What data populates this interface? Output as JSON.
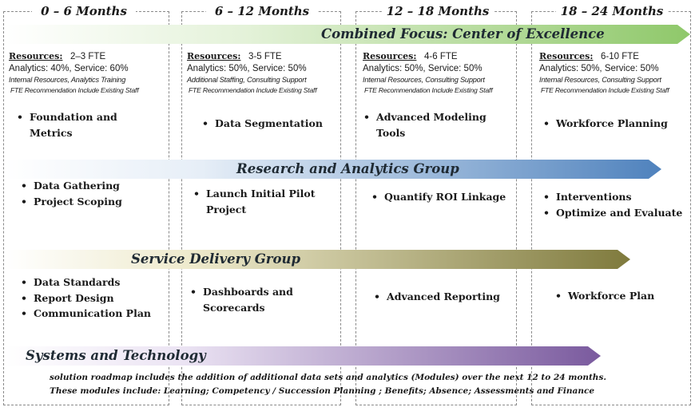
{
  "columns": [
    {
      "header": "0 – 6 Months",
      "resources_label": "Resources:",
      "fte": "2–3 FTE",
      "split": "Analytics: 40%,  Service: 60%",
      "note": "Internal Resources, Analytics Training",
      "note2": "FTE Recommendation Include Existing Staff"
    },
    {
      "header": "6 – 12 Months",
      "resources_label": "Resources:",
      "fte": "3-5 FTE",
      "split": "Analytics: 50%,  Service: 50%",
      "note": "Additional Staffing, Consulting Support",
      "note2": "FTE Recommendation Include Existing Staff"
    },
    {
      "header": "12 – 18 Months",
      "resources_label": "Resources:",
      "fte": "4-6 FTE",
      "split": "Analytics: 50%,  Service: 50%",
      "note": "Internal Resources, Consulting Support",
      "note2": "FTE Recommendation Include Existing Staff"
    },
    {
      "header": "18 – 24 Months",
      "resources_label": "Resources:",
      "fte": "6-10 FTE",
      "split": "Analytics: 50%,  Service: 50%",
      "note": "Internal Resources, Consulting Support",
      "note2": "FTE Recommendation Include Existing Staff"
    }
  ],
  "banners": {
    "coe": {
      "label": "Combined Focus: Center of Excellence",
      "color": "#8fc86a"
    },
    "rag": {
      "label": "Research and Analytics Group",
      "color": "#4f82bd"
    },
    "sdg": {
      "label": "Service Delivery Group",
      "color": "#7f7a3d"
    },
    "sys": {
      "label": "Systems and Technology",
      "color": "#7a5a9e"
    }
  },
  "coe_items": [
    [
      "Foundation and Metrics"
    ],
    [
      "Data Segmentation"
    ],
    [
      "Advanced Modeling Tools"
    ],
    [
      "Workforce Planning"
    ]
  ],
  "rag_items": [
    [
      "Data Gathering",
      "Project Scoping"
    ],
    [
      "Launch Initial Pilot Project"
    ],
    [
      "Quantify ROI Linkage"
    ],
    [
      "Interventions",
      "Optimize and Evaluate"
    ]
  ],
  "sdg_items": [
    [
      "Data Standards",
      "Report Design",
      "Communication Plan"
    ],
    [
      "Dashboards and Scorecards"
    ],
    [
      "Advanced Reporting"
    ],
    [
      "Workforce Plan"
    ]
  ],
  "footnote": {
    "line1": "solution roadmap includes the addition of additional data sets and analytics (Modules) over the next 12 to 24 months.",
    "line2": "These modules include: Learning; Competency / Succession Planning ; Benefits; Absence; Assessments and Finance"
  }
}
